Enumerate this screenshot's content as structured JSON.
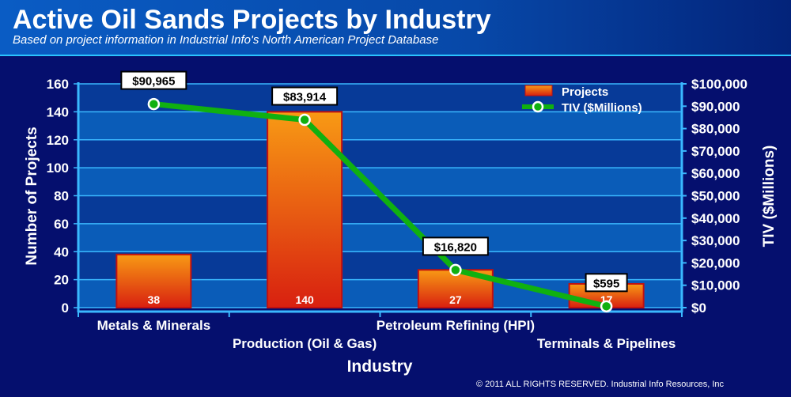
{
  "header": {
    "title": "Active Oil Sands Projects by Industry",
    "subtitle": "Based on project information in Industrial Info's North American Project Database"
  },
  "footer": {
    "copyright": "© 2011 ALL RIGHTS RESERVED. Industrial Info Resources, Inc"
  },
  "chart_data": {
    "type": "bar+line",
    "title": "Active Oil Sands Projects by Industry",
    "xlabel": "Industry",
    "ylabel": "Number of Projects",
    "y2label": "TIV ($Millions)",
    "categories": [
      "Metals & Minerals",
      "Production (Oil & Gas)",
      "Petroleum Refining (HPI)",
      "Terminals & Pipelines"
    ],
    "series": [
      {
        "name": "Projects",
        "type": "bar",
        "axis": "left",
        "values": [
          38,
          140,
          27,
          17
        ],
        "labels": [
          "38",
          "140",
          "27",
          "17"
        ]
      },
      {
        "name": "TIV ($Millions)",
        "type": "line",
        "axis": "right",
        "values": [
          90965,
          83914,
          16820,
          595
        ],
        "labels": [
          "$90,965",
          "$83,914",
          "$16,820",
          "$595"
        ]
      }
    ],
    "ylim": [
      0,
      160
    ],
    "yticks": [
      "0",
      "20",
      "40",
      "60",
      "80",
      "100",
      "120",
      "140",
      "160"
    ],
    "y2lim": [
      0,
      100000
    ],
    "y2ticks": [
      "$0",
      "$10,000",
      "$20,000",
      "$30,000",
      "$40,000",
      "$50,000",
      "$60,000",
      "$70,000",
      "$80,000",
      "$90,000",
      "$100,000"
    ],
    "legend": "top-right",
    "grid": true,
    "colors": {
      "bar": "#f08a10",
      "line": "#10b010"
    }
  }
}
